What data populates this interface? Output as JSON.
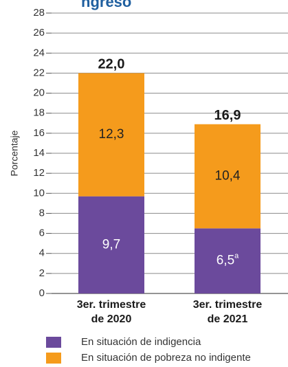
{
  "title_fragment": "ngreso",
  "chart_data": {
    "type": "bar",
    "stacked": true,
    "categories": [
      [
        "3er. trimestre",
        "de 2020"
      ],
      [
        "3er. trimestre",
        "de 2021"
      ]
    ],
    "series": [
      {
        "name": "En situación de indigencia",
        "values": [
          9.7,
          6.5
        ],
        "labels": [
          "9,7",
          "6,5"
        ],
        "superscripts": [
          "",
          "a"
        ],
        "color": "#6b4a9c"
      },
      {
        "name": "En situación de pobreza no indigente",
        "values": [
          12.3,
          10.4
        ],
        "labels": [
          "12,3",
          "10,4"
        ],
        "superscripts": [
          "",
          ""
        ],
        "color": "#f59b1c"
      }
    ],
    "totals": [
      "22,0",
      "16,9"
    ],
    "ylabel": "Porcentaje",
    "ylim": [
      0,
      28
    ],
    "yticks": [
      0,
      2,
      4,
      6,
      8,
      10,
      12,
      14,
      16,
      18,
      20,
      22,
      24,
      26,
      28
    ],
    "grid": true,
    "legend_position": "bottom"
  }
}
